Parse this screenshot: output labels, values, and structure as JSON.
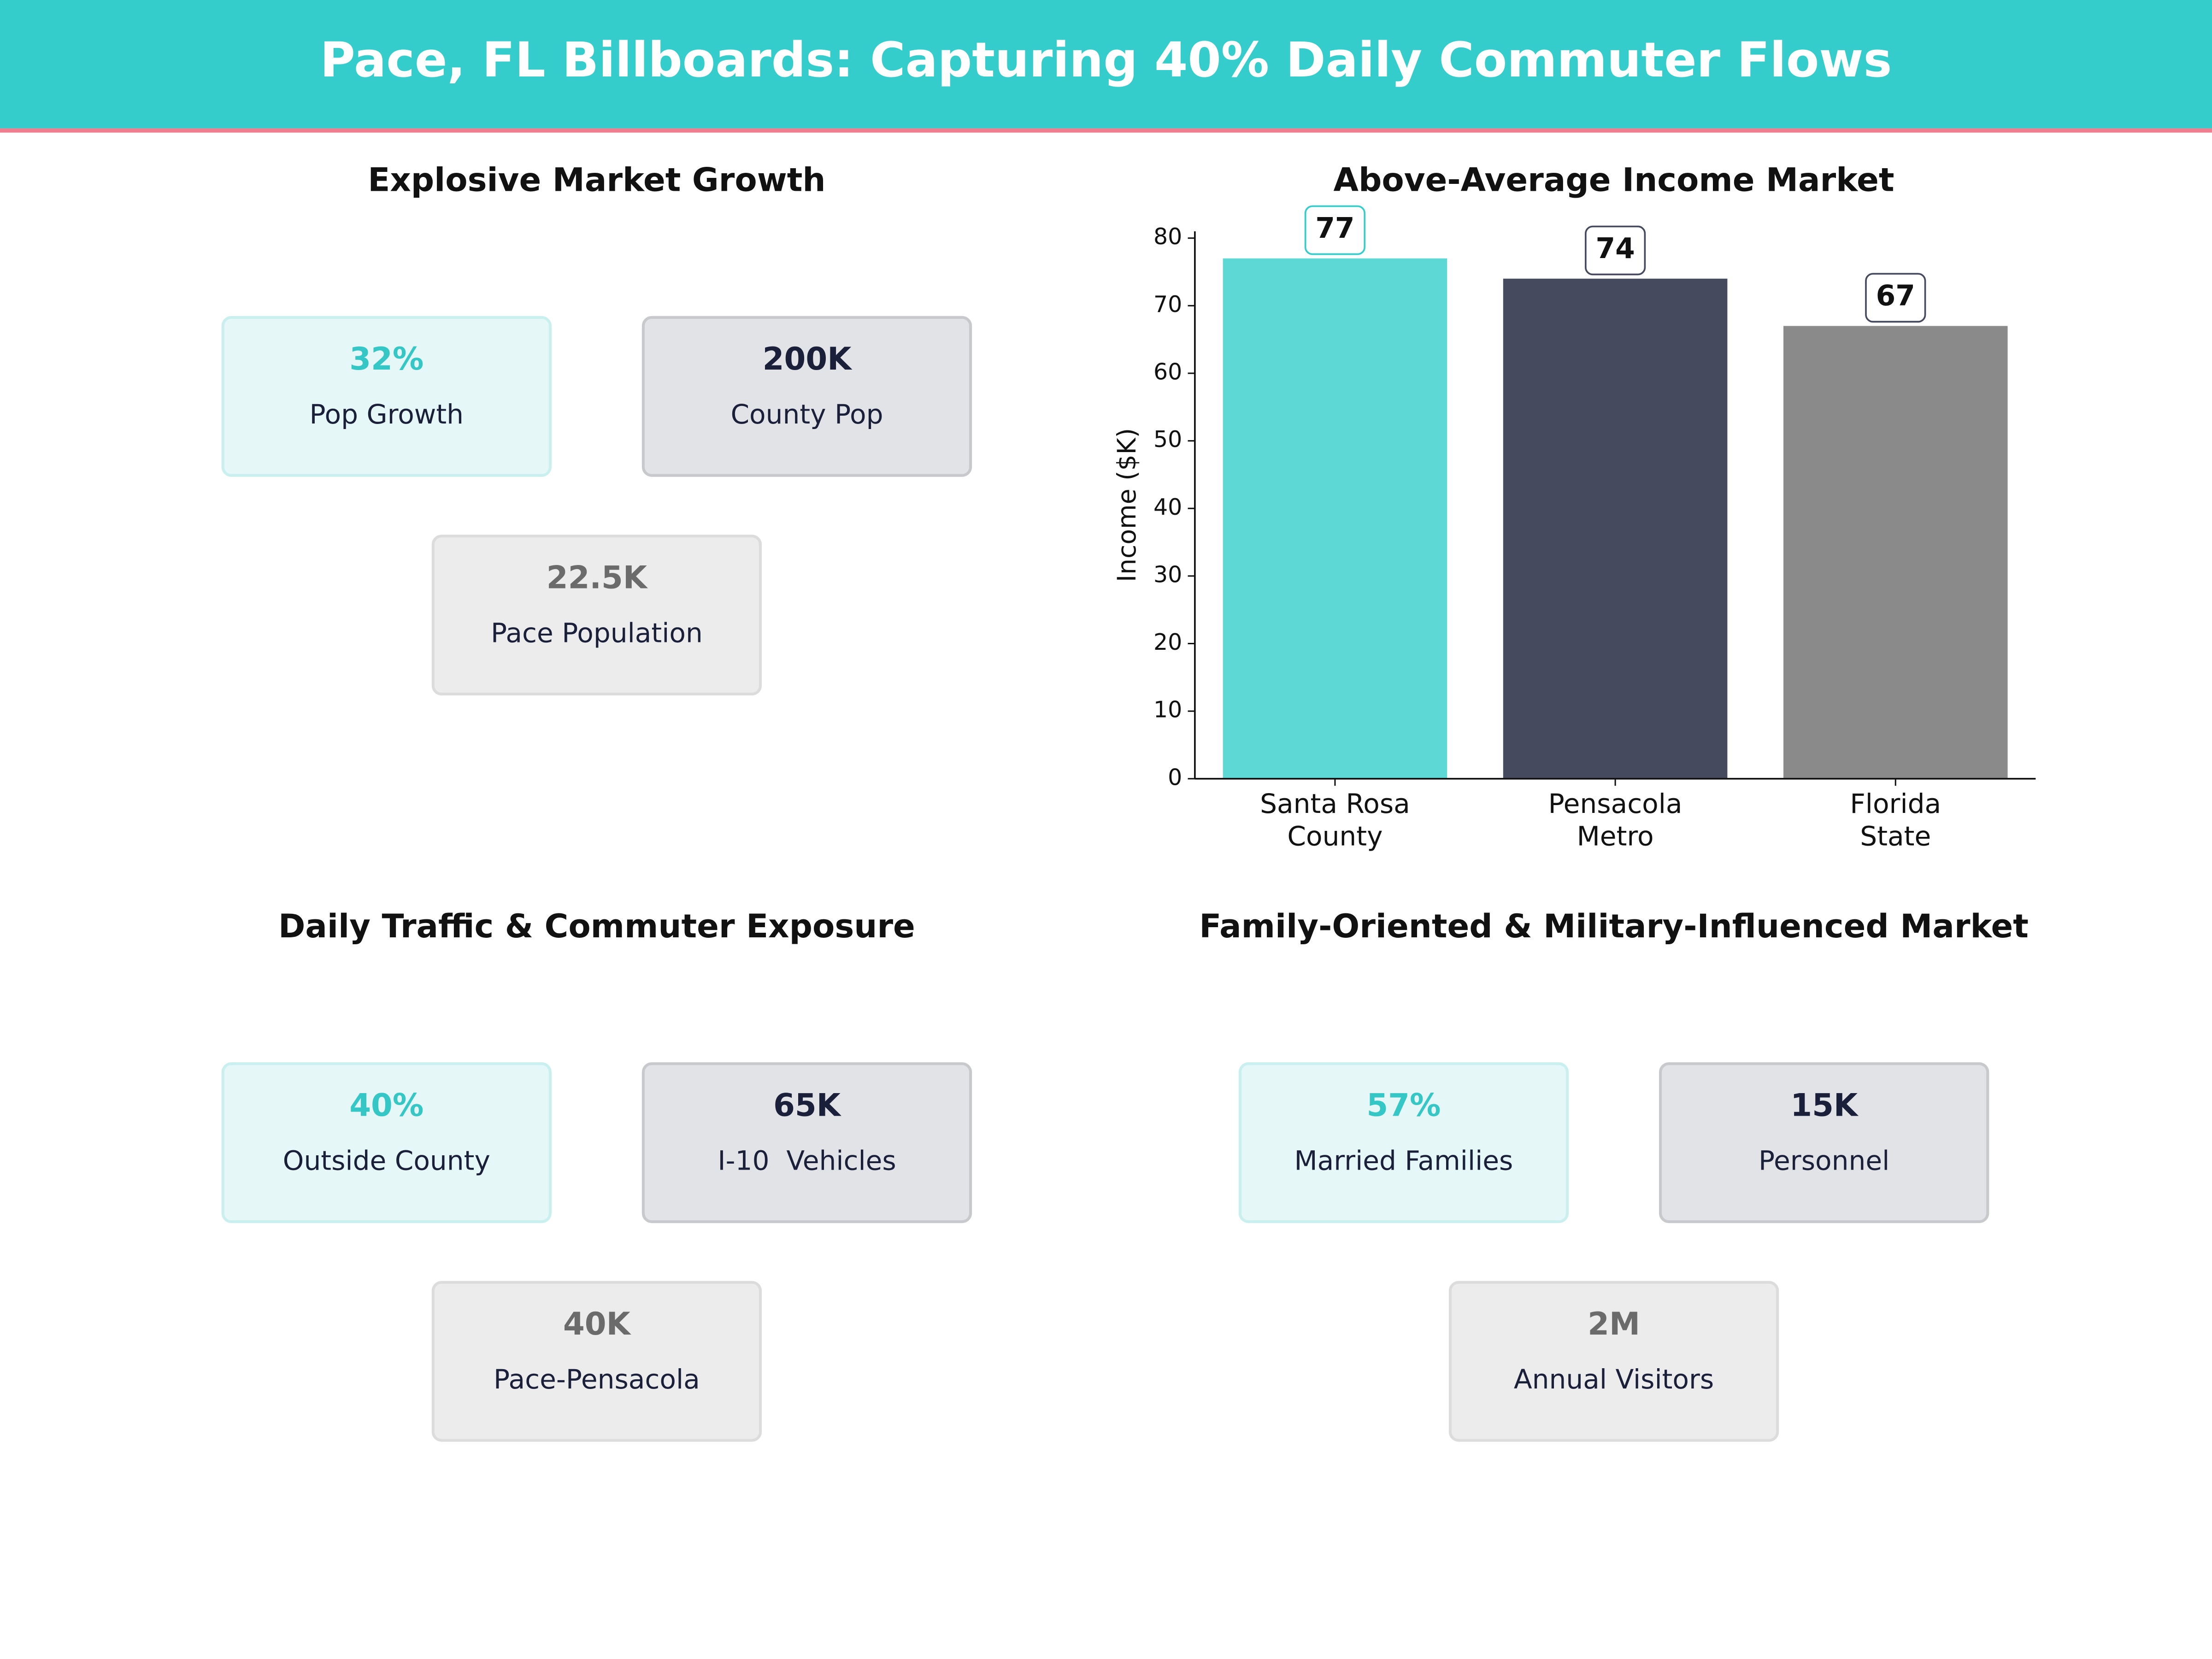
{
  "title": "Pace, FL Billboards: Capturing 40% Daily Commuter Flows",
  "panels": [
    {
      "title": "Explosive Market Growth",
      "cards": [
        {
          "value": "32%",
          "label": "Pop Growth"
        },
        {
          "value": "200K",
          "label": "County Pop"
        },
        {
          "value": "22.5K",
          "label": "Pace Population"
        }
      ]
    },
    {
      "title": "Daily Traffic & Commuter Exposure",
      "cards": [
        {
          "value": "40%",
          "label": "Outside County"
        },
        {
          "value": "65K",
          "label": "I-10  Vehicles"
        },
        {
          "value": "40K",
          "label": "Pace-Pensacola"
        }
      ]
    },
    {
      "title": "Family-Oriented & Military-Influenced Market",
      "cards": [
        {
          "value": "57%",
          "label": "Married Families"
        },
        {
          "value": "15K",
          "label": "Personnel"
        },
        {
          "value": "2M",
          "label": "Annual Visitors"
        }
      ]
    }
  ],
  "chart_data": {
    "type": "bar",
    "title": "Above-Average Income Market",
    "ylabel": "Income ($K)",
    "categories": [
      "Santa Rosa\nCounty",
      "Pensacola\nMetro",
      "Florida\nState"
    ],
    "values": [
      77,
      74,
      67
    ],
    "colors": [
      "#5dd8d5",
      "#454a5e",
      "#8a8a8a"
    ],
    "ylim": [
      0,
      81
    ],
    "yticks": [
      0,
      10,
      20,
      30,
      40,
      50,
      60,
      70,
      80
    ]
  }
}
